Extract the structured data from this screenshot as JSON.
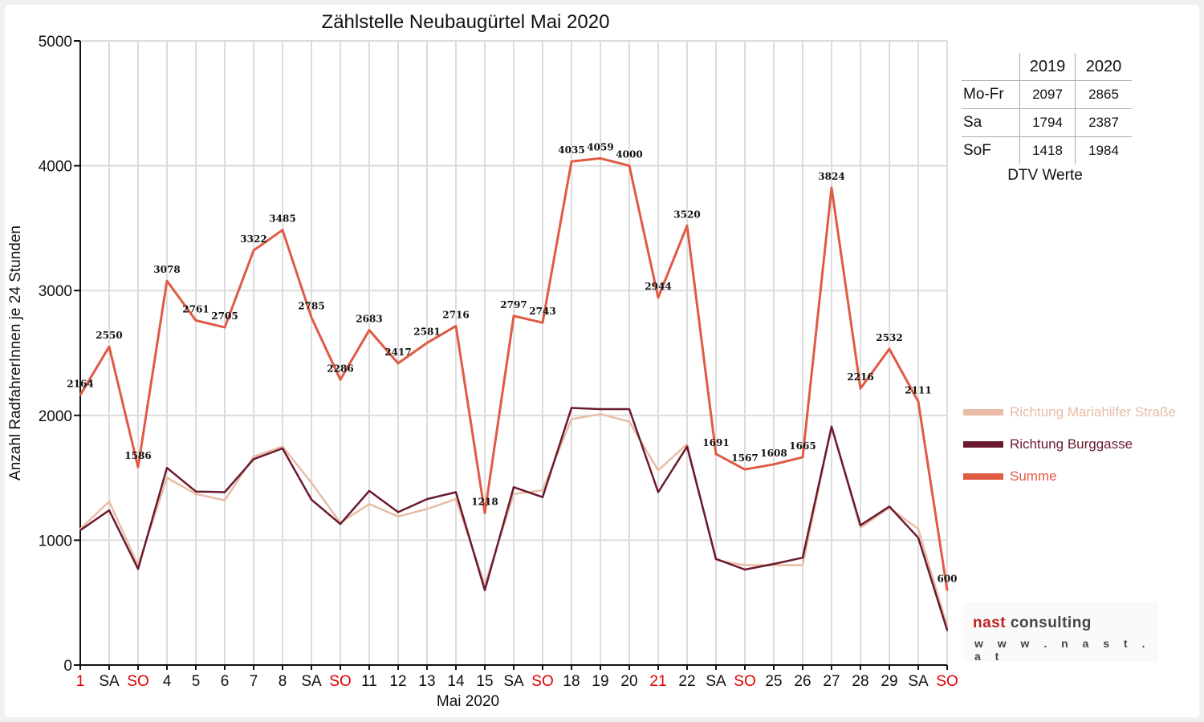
{
  "chart_data": {
    "type": "line",
    "title": "Zählstelle Neubaugürtel Mai 2020",
    "xlabel": "Mai 2020",
    "ylabel": "Anzahl RadfahrerInnen je 24 Stunden",
    "ylim": [
      0,
      5000
    ],
    "yticks": [
      "0",
      "1000",
      "2000",
      "3000",
      "4000",
      "5000"
    ],
    "grid": true,
    "legend_position": "right",
    "categories": [
      "1",
      "SA",
      "SO",
      "4",
      "5",
      "6",
      "7",
      "8",
      "SA",
      "SO",
      "11",
      "12",
      "13",
      "14",
      "15",
      "SA",
      "SO",
      "18",
      "19",
      "20",
      "21",
      "22",
      "SA",
      "SO",
      "25",
      "26",
      "27",
      "28",
      "29",
      "SA",
      "SO"
    ],
    "category_colors": [
      "#e00000",
      "#111111",
      "#e00000",
      "#111111",
      "#111111",
      "#111111",
      "#111111",
      "#111111",
      "#111111",
      "#e00000",
      "#111111",
      "#111111",
      "#111111",
      "#111111",
      "#111111",
      "#111111",
      "#e00000",
      "#111111",
      "#111111",
      "#111111",
      "#e00000",
      "#111111",
      "#111111",
      "#e00000",
      "#111111",
      "#111111",
      "#111111",
      "#111111",
      "#111111",
      "#111111",
      "#e00000"
    ],
    "series": [
      {
        "name": "Richtung Mariahilfer Straße",
        "color": "#e8bca6",
        "labels": false,
        "values": [
          1090,
          1310,
          800,
          1500,
          1370,
          1320,
          1670,
          1750,
          1460,
          1140,
          1290,
          1190,
          1250,
          1330,
          640,
          1370,
          1400,
          1970,
          2010,
          1950,
          1560,
          1770,
          840,
          800,
          800,
          800,
          1910,
          1100,
          1260,
          1090,
          310
        ]
      },
      {
        "name": "Richtung Burggasse",
        "color": "#6b1a2e",
        "labels": false,
        "values": [
          1080,
          1240,
          770,
          1580,
          1390,
          1385,
          1650,
          1735,
          1325,
          1130,
          1395,
          1225,
          1330,
          1385,
          600,
          1425,
          1345,
          2060,
          2050,
          2050,
          1385,
          1750,
          850,
          765,
          810,
          860,
          1910,
          1120,
          1270,
          1020,
          280
        ]
      },
      {
        "name": "Summe",
        "color": "#e05a44",
        "labels": true,
        "values": [
          2164,
          2550,
          1586,
          3078,
          2761,
          2705,
          3322,
          3485,
          2785,
          2286,
          2683,
          2417,
          2581,
          2716,
          1218,
          2797,
          2743,
          4035,
          4059,
          4000,
          2944,
          3520,
          1691,
          1567,
          1608,
          1665,
          3824,
          2216,
          2532,
          2111,
          600
        ]
      }
    ]
  },
  "dtv_table": {
    "caption": "DTV Werte",
    "col_2019": "2019",
    "col_2020": "2020",
    "rows": [
      {
        "label": "Mo-Fr",
        "v2019": "2097",
        "v2020": "2865"
      },
      {
        "label": "Sa",
        "v2019": "1794",
        "v2020": "2387"
      },
      {
        "label": "SoF",
        "v2019": "1418",
        "v2020": "1984"
      }
    ]
  },
  "logo": {
    "brand_accent": "nast",
    "brand_rest": " consulting",
    "url": "w w w . n a s t . a t"
  }
}
